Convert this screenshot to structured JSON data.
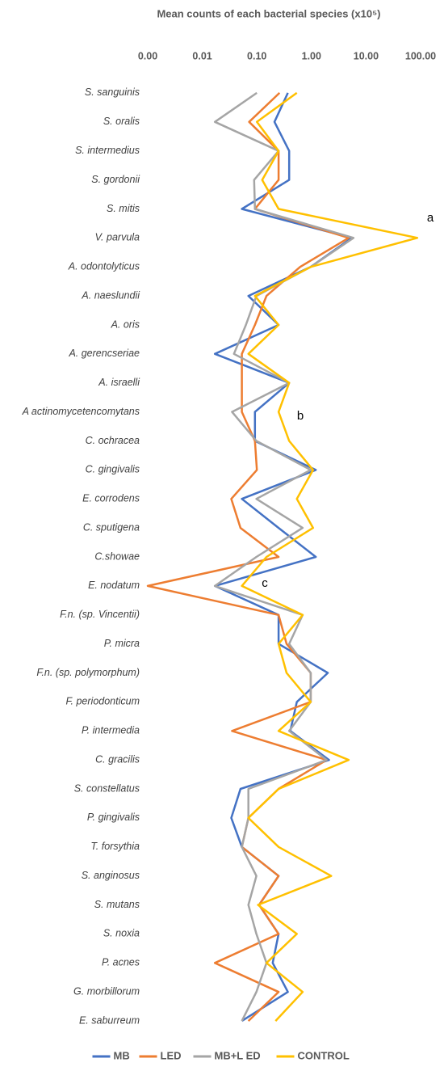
{
  "chart_data": {
    "type": "line",
    "title": "Mean counts of each bacterial species (x10⁵)",
    "categories": [
      "S. sanguinis",
      "S. oralis",
      "S. intermedius",
      "S. gordonii",
      "S. mitis",
      "V. parvula",
      "A. odontolyticus",
      "A. naeslundii",
      "A. oris",
      "A. gerencseriae",
      "A. israelli",
      "A actinomycetencomytans",
      "C. ochracea",
      "C. gingivalis",
      "E. corrodens",
      "C. sputigena",
      "C.showae",
      "E. nodatum",
      "F.n. (sp. Vincentii)",
      "P. micra",
      "F.n. (sp. polymorphum)",
      "F. periodonticum",
      "P. intermedia",
      "C. gracilis",
      "S. constellatus",
      "P. gingivalis",
      "T. forsythia",
      "S. anginosus",
      "S. mutans",
      "S. noxia",
      "P. acnes",
      "G. morbillorum",
      "E. saburreum"
    ],
    "series": [
      {
        "name": "MB",
        "color": "#4472c4",
        "values": [
          0.37,
          0.21,
          0.39,
          0.39,
          0.053,
          5.5,
          0.97,
          0.07,
          0.25,
          0.017,
          0.39,
          0.092,
          0.092,
          1.2,
          0.053,
          0.25,
          1.2,
          0.017,
          0.25,
          0.25,
          2.0,
          0.54,
          0.41,
          2.1,
          0.05,
          0.034,
          0.053,
          0.25,
          0.11,
          0.25,
          0.195,
          0.37,
          0.053
        ]
      },
      {
        "name": "LED",
        "color": "#ed7d31",
        "values": [
          0.26,
          0.072,
          0.25,
          0.25,
          0.092,
          4.8,
          0.62,
          0.15,
          0.092,
          0.053,
          0.053,
          0.053,
          0.092,
          0.1,
          0.034,
          0.05,
          0.25,
          0.001,
          0.25,
          0.35,
          0.97,
          0.97,
          0.035,
          1.9,
          0.25,
          0.07,
          0.053,
          0.25,
          0.11,
          0.25,
          0.017,
          0.25,
          0.07
        ]
      },
      {
        "name": "MB+L ED",
        "color": "#a5a5a5",
        "values": [
          0.1,
          0.017,
          0.25,
          0.089,
          0.092,
          5.9,
          0.97,
          0.098,
          0.063,
          0.038,
          0.39,
          0.035,
          0.098,
          0.97,
          0.098,
          0.69,
          0.098,
          0.017,
          0.69,
          0.39,
          0.97,
          0.97,
          0.39,
          1.9,
          0.07,
          0.07,
          0.053,
          0.098,
          0.07,
          0.098,
          0.15,
          0.098,
          0.053
        ]
      },
      {
        "name": "CONTROL",
        "color": "#ffc000",
        "values": [
          0.54,
          0.1,
          0.25,
          0.125,
          0.25,
          87,
          0.97,
          0.092,
          0.25,
          0.07,
          0.39,
          0.25,
          0.39,
          1.07,
          0.54,
          1.07,
          0.15,
          0.053,
          0.69,
          0.25,
          0.35,
          0.97,
          0.25,
          4.8,
          0.25,
          0.07,
          0.25,
          2.3,
          0.105,
          0.54,
          0.15,
          0.69,
          0.22
        ]
      }
    ],
    "xlim": [
      0.001,
      100
    ],
    "xticks": [
      {
        "value": 0.001,
        "label": "0.00"
      },
      0.01,
      {
        "value": 0.1,
        "label": "0.10"
      },
      {
        "value": 1,
        "label": "1.00"
      },
      {
        "value": 10,
        "label": "10.00"
      },
      {
        "value": 100,
        "label": "100.00"
      }
    ],
    "x_log_scale": true,
    "legend": "bottom",
    "annotations": [
      "a",
      "b",
      "c"
    ]
  }
}
